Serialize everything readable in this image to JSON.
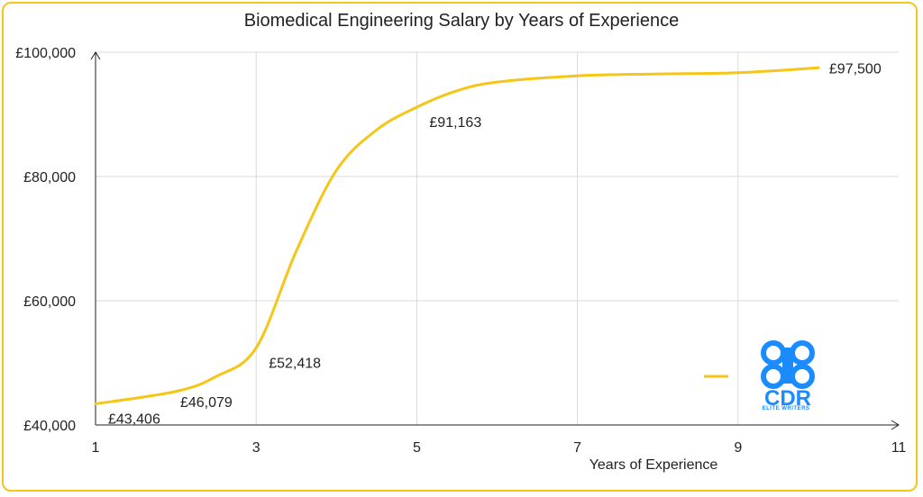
{
  "colors": {
    "series": "#f5c518",
    "brand": "#1a8cff",
    "grid": "#d9d9d9",
    "axis": "#222222"
  },
  "logo": {
    "text": "CDR",
    "subtext": "ELITE WRITERS"
  },
  "chart_data": {
    "type": "line",
    "title": "Biomedical Engineering Salary by Years of Experience",
    "xlabel": "Years of Experience",
    "ylabel": "",
    "xlim": [
      1,
      11
    ],
    "ylim": [
      40000,
      100000
    ],
    "x_ticks": [
      1,
      3,
      5,
      7,
      9,
      11
    ],
    "x_tick_labels": [
      "1",
      "3",
      "5",
      "7",
      "9",
      "11"
    ],
    "y_ticks": [
      40000,
      60000,
      80000,
      100000
    ],
    "y_tick_labels": [
      "£40,000",
      "£60,000",
      "£80,000",
      "£100,000"
    ],
    "grid": true,
    "legend": "right",
    "smooth": true,
    "series": [
      {
        "x": [
          1,
          2,
          2.5,
          3,
          3.5,
          4,
          4.5,
          5,
          5.5,
          6,
          7,
          8,
          9,
          10
        ],
        "y": [
          43406,
          45400,
          47800,
          52418,
          68000,
          81000,
          87500,
          91163,
          93800,
          95200,
          96200,
          96500,
          96700,
          97500
        ]
      }
    ],
    "data_labels": [
      {
        "x": 1,
        "y": 43406,
        "text": "£43,406",
        "pos": "below-right"
      },
      {
        "x": 2.2,
        "y": 46079,
        "text": "£46,079",
        "pos": "below"
      },
      {
        "x": 3,
        "y": 52418,
        "text": "£52,418",
        "pos": "below-right"
      },
      {
        "x": 5,
        "y": 91163,
        "text": "£91,163",
        "pos": "below-right"
      },
      {
        "x": 10,
        "y": 97500,
        "text": "£97,500",
        "pos": "right"
      }
    ]
  }
}
